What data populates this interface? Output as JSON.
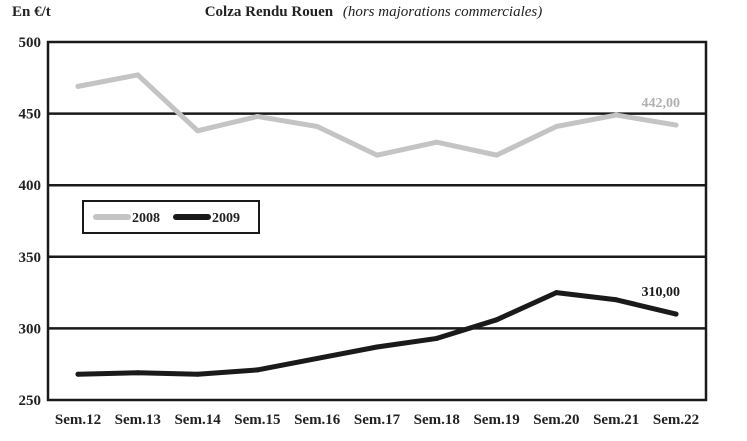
{
  "chart_data": {
    "type": "line",
    "unit_label": "En €/t",
    "title": "Colza Rendu Rouen",
    "subtitle": "(hors majorations commerciales)",
    "categories": [
      "Sem.12",
      "Sem.13",
      "Sem.14",
      "Sem.15",
      "Sem.16",
      "Sem.17",
      "Sem.18",
      "Sem.19",
      "Sem.20",
      "Sem.21",
      "Sem.22"
    ],
    "ylim": [
      250,
      500
    ],
    "yticks": [
      500,
      450,
      400,
      350,
      300,
      250
    ],
    "grid": true,
    "legend_position": "left",
    "series": [
      {
        "name": "2008",
        "color": "#c4c4c4",
        "values": [
          469,
          477,
          438,
          448,
          441,
          421,
          430,
          421,
          441,
          449,
          442
        ],
        "end_label": "442,00"
      },
      {
        "name": "2009",
        "color": "#1a1a1a",
        "values": [
          268,
          269,
          268,
          271,
          279,
          287,
          293,
          306,
          325,
          320,
          310
        ],
        "end_label": "310,00"
      }
    ]
  }
}
